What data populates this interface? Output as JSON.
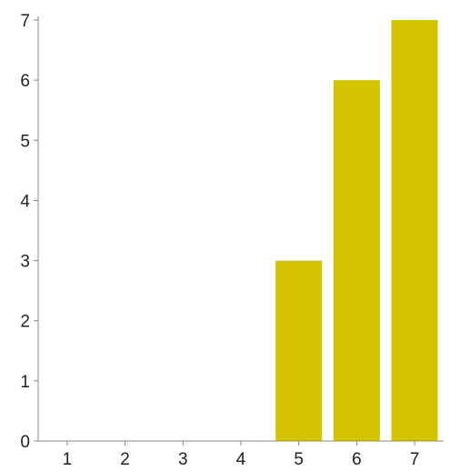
{
  "chart_data": {
    "type": "bar",
    "categories": [
      "1",
      "2",
      "3",
      "4",
      "5",
      "6",
      "7"
    ],
    "values": [
      0,
      0,
      0,
      0,
      3,
      6,
      7
    ],
    "title": "",
    "xlabel": "",
    "ylabel": "",
    "ylim": [
      0,
      7
    ],
    "yticks": [
      "0",
      "1",
      "2",
      "3",
      "4",
      "5",
      "6",
      "7"
    ],
    "grid": false,
    "legend": "none",
    "bar_color": "#d4c400",
    "axis_color": "#888888"
  }
}
